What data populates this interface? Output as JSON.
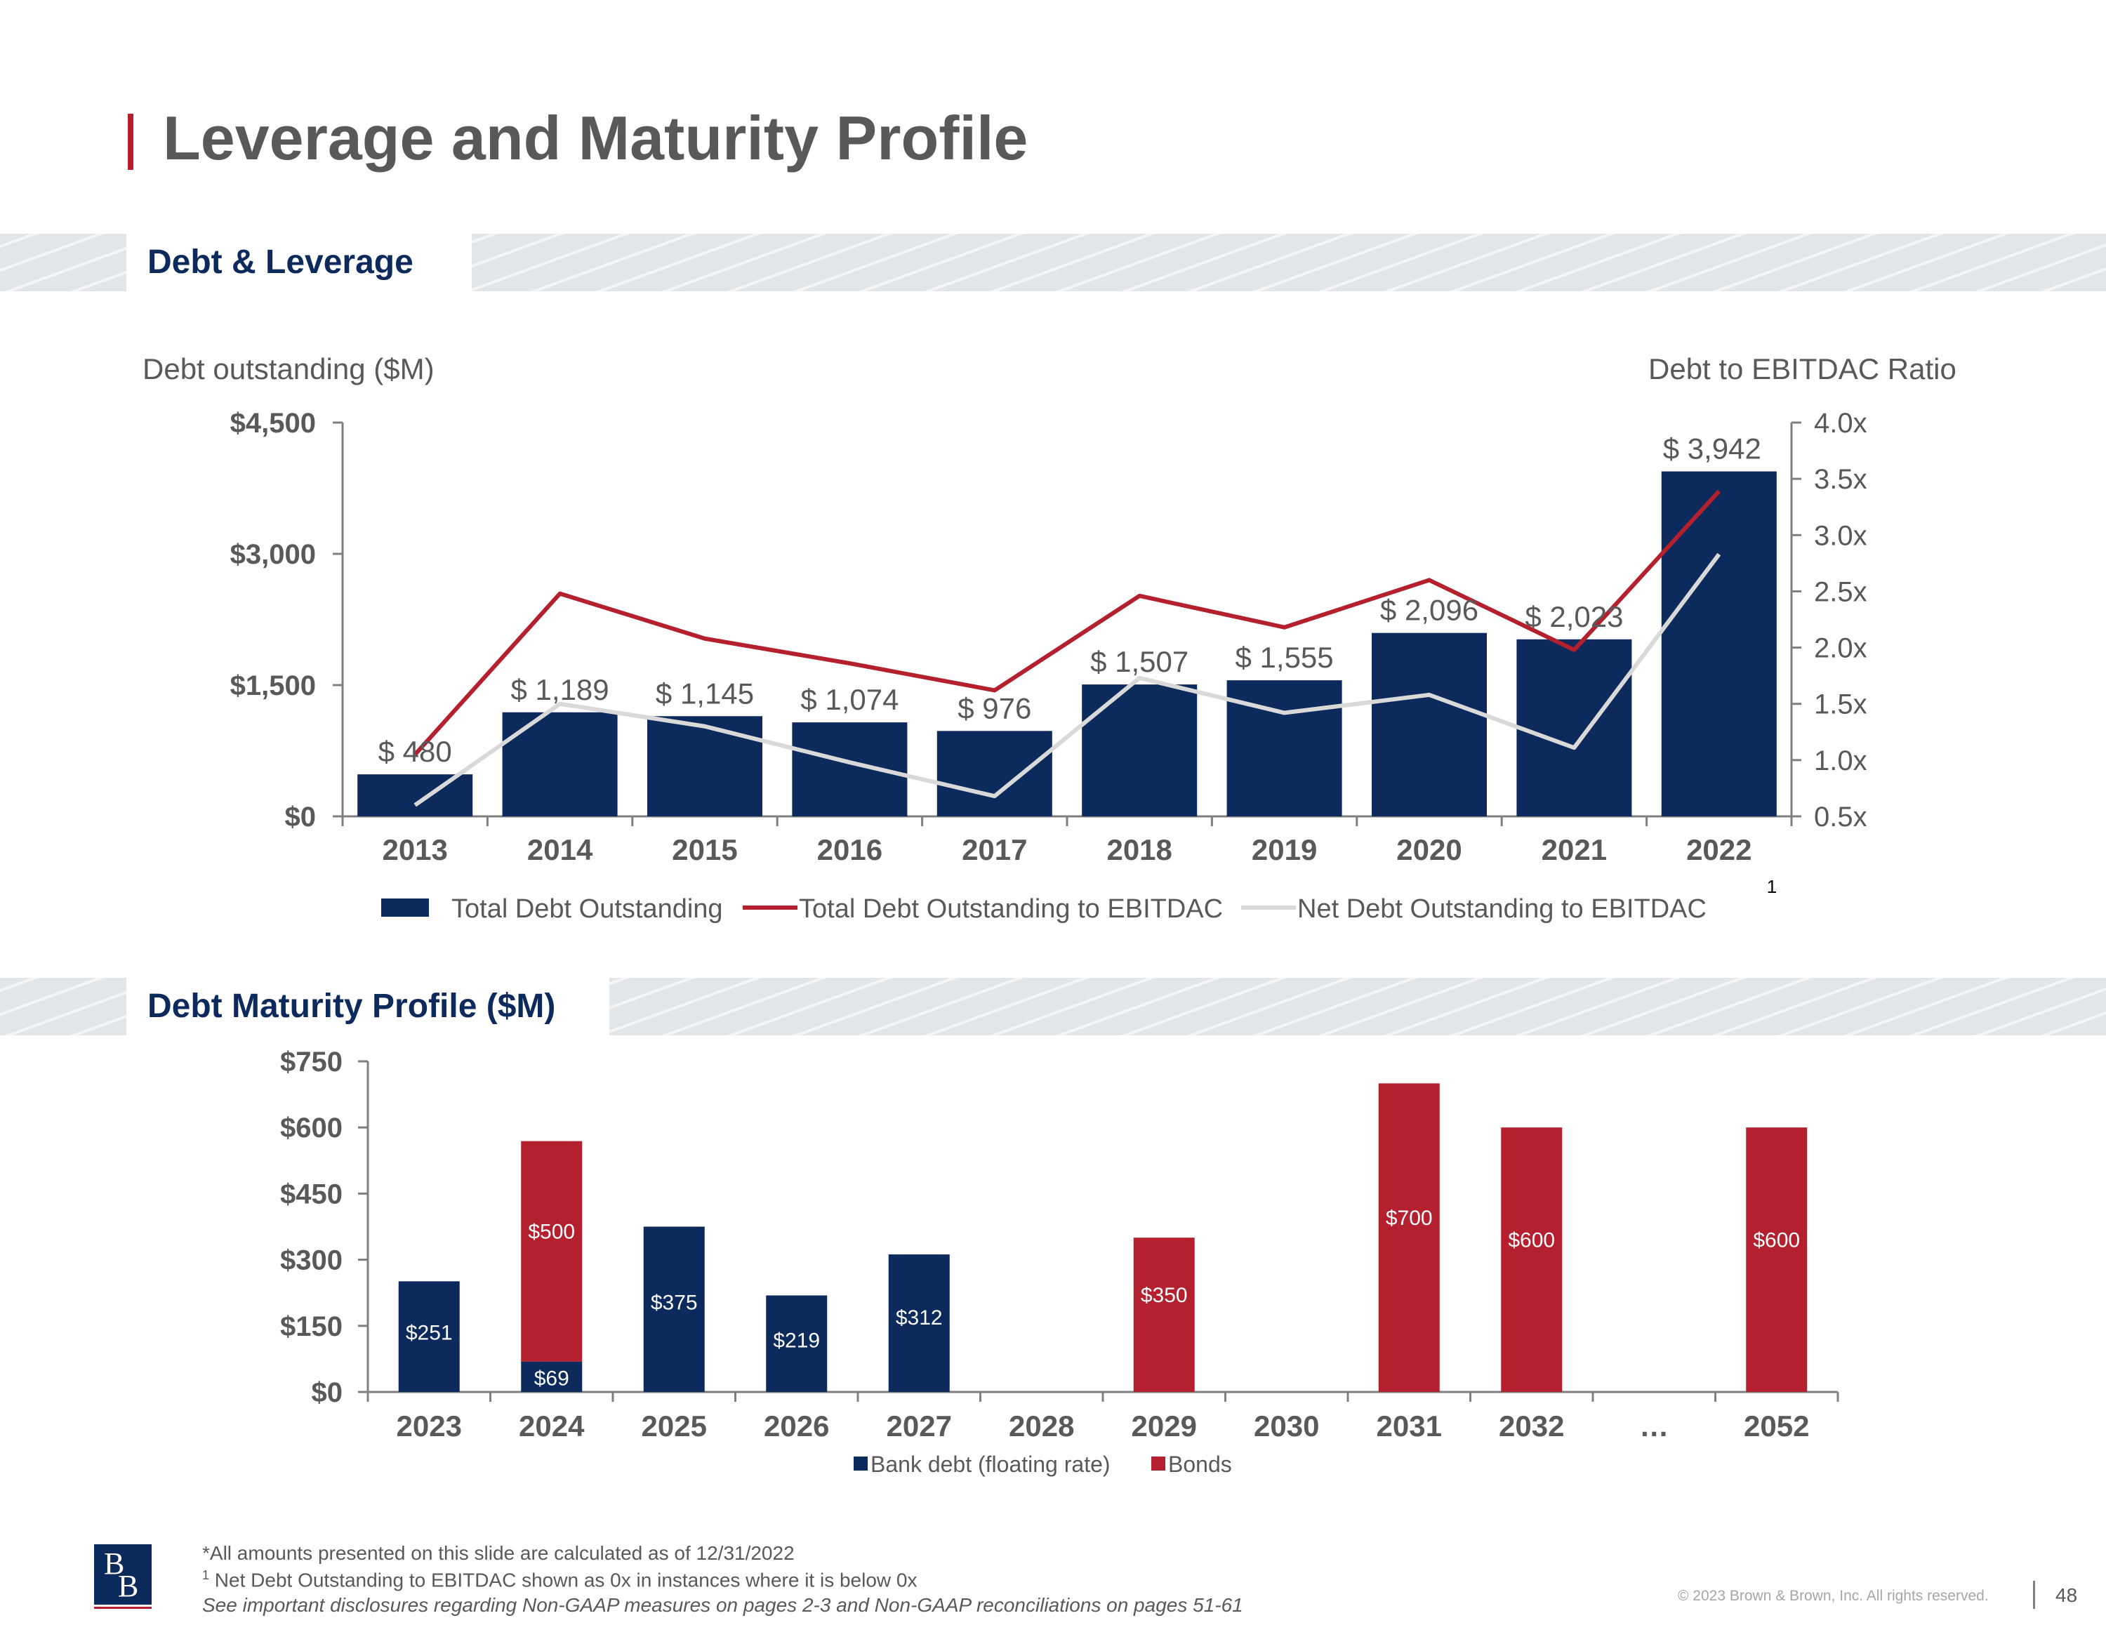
{
  "page": {
    "title": "Leverage and Maturity Profile",
    "page_number": "48",
    "copyright": "© 2023 Brown & Brown, Inc. All rights reserved.",
    "logo_text": "BB"
  },
  "sections": {
    "debt_leverage": "Debt & Leverage",
    "maturity": "Debt Maturity Profile ($M)"
  },
  "footnotes": {
    "line1": "*All amounts presented on this slide are calculated as of 12/31/2022",
    "line2_sup": "1",
    "line2": " Net Debt Outstanding to EBITDAC shown as 0x in instances where it is below 0x",
    "line3": "See important disclosures regarding Non-GAAP measures on pages 2-3 and Non-GAAP reconciliations on pages 51-61"
  },
  "colors": {
    "navy": "#0d2a5c",
    "red": "#b5202e",
    "gray_line": "#d9d9d9",
    "text": "#595959"
  },
  "chart_data": [
    {
      "type": "bar",
      "ylabel": "Debt outstanding ($M)",
      "y2label": "Debt to EBITDAC Ratio",
      "categories": [
        "2013",
        "2014",
        "2015",
        "2016",
        "2017",
        "2018",
        "2019",
        "2020",
        "2021",
        "2022"
      ],
      "ylim": [
        0,
        4500
      ],
      "yticks": [
        "$0",
        "$1,500",
        "$3,000",
        "$4,500"
      ],
      "y2lim": [
        0.5,
        4.0
      ],
      "y2ticks": [
        "0.5x",
        "1.0x",
        "1.5x",
        "2.0x",
        "2.5x",
        "3.0x",
        "3.5x",
        "4.0x"
      ],
      "footnote_marker": "1",
      "legend_position": "bottom",
      "series": [
        {
          "name": "Total Debt Outstanding",
          "kind": "bar",
          "axis": "left",
          "color": "#0d2a5c",
          "values": [
            480,
            1189,
            1145,
            1074,
            976,
            1507,
            1555,
            2096,
            2023,
            3942
          ],
          "labels": [
            "$ 480",
            "$ 1,189",
            "$ 1,145",
            "$ 1,074",
            "$ 976",
            "$ 1,507",
            "$ 1,555",
            "$ 2,096",
            "$ 2,023",
            "$ 3,942"
          ]
        },
        {
          "name": "Total Debt Outstanding to EBITDAC",
          "kind": "line",
          "axis": "right",
          "color": "#b5202e",
          "values": [
            1.05,
            2.48,
            2.08,
            1.86,
            1.62,
            2.46,
            2.18,
            2.6,
            1.98,
            3.39
          ]
        },
        {
          "name": "Net Debt Outstanding to EBITDAC",
          "kind": "line",
          "axis": "right",
          "color": "#d9d9d9",
          "values": [
            0.6,
            1.5,
            1.3,
            0.98,
            0.68,
            1.73,
            1.42,
            1.58,
            1.11,
            2.83
          ]
        }
      ]
    },
    {
      "type": "bar",
      "stacked": true,
      "categories": [
        "2023",
        "2024",
        "2025",
        "2026",
        "2027",
        "2028",
        "2029",
        "2030",
        "2031",
        "2032",
        "…",
        "2052"
      ],
      "ylim": [
        0,
        750
      ],
      "yticks": [
        "$0",
        "$150",
        "$300",
        "$450",
        "$600",
        "$750"
      ],
      "legend_position": "bottom",
      "series": [
        {
          "name": "Bank debt (floating rate)",
          "color": "#0d2a5c",
          "values": [
            251,
            69,
            375,
            219,
            312,
            null,
            null,
            null,
            null,
            null,
            null,
            null
          ],
          "labels": [
            "$251",
            "$69",
            "$375",
            "$219",
            "$312",
            "",
            "",
            "",
            "",
            "",
            "",
            ""
          ]
        },
        {
          "name": "Bonds",
          "color": "#b5202e",
          "values": [
            null,
            500,
            null,
            null,
            null,
            null,
            350,
            null,
            700,
            600,
            null,
            600
          ],
          "labels": [
            "",
            "$500",
            "",
            "",
            "",
            "",
            "$350",
            "",
            "$700",
            "$600",
            "",
            "$600"
          ]
        }
      ]
    }
  ]
}
